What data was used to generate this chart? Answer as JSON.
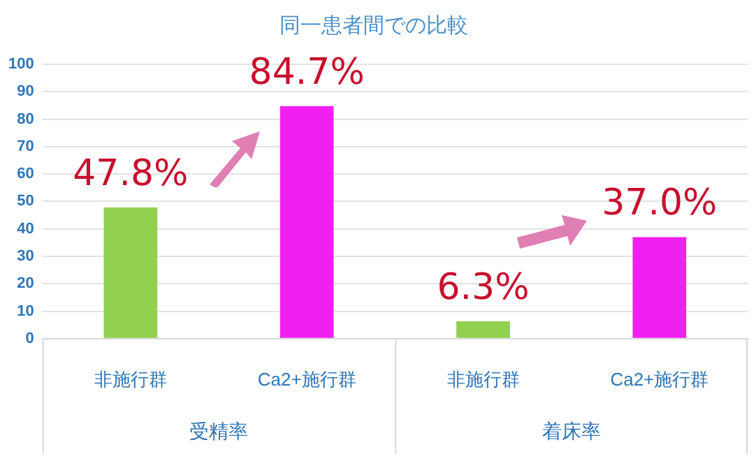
{
  "chart_data": {
    "type": "bar",
    "title": "同一患者間での比較",
    "categories": [
      "非施行群",
      "Ca2+施行群",
      "非施行群",
      "Ca2+施行群"
    ],
    "values": [
      47.8,
      84.7,
      6.3,
      37.0
    ],
    "colors": [
      "#92d050",
      "#f020f0",
      "#92d050",
      "#f020f0"
    ],
    "value_labels": [
      "47.8%",
      "84.7%",
      "6.3%",
      "37.0%"
    ],
    "annotations": [
      "受精率",
      "着床率"
    ],
    "ylim": [
      0,
      100
    ],
    "yticks": [
      0,
      10,
      20,
      30,
      40,
      50,
      60,
      70,
      80,
      90,
      100
    ],
    "grid": "y",
    "legend": false
  }
}
